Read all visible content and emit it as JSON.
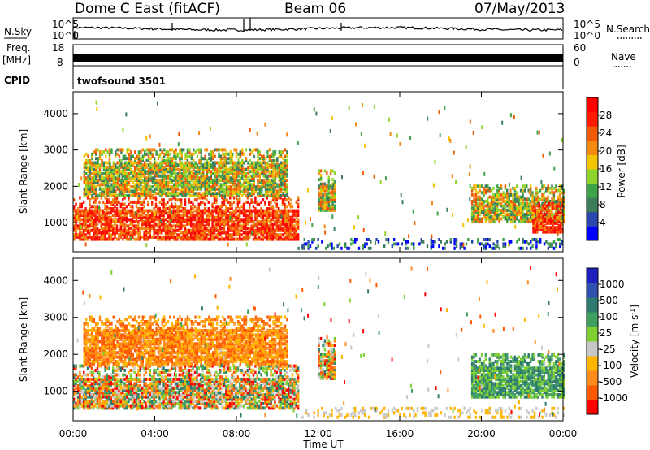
{
  "header": {
    "station": "Dome C East (fitACF)",
    "beam": "Beam 06",
    "date": "07/May/2013"
  },
  "side_labels": {
    "nsky": "N.Sky",
    "nsearch": "N.Search",
    "freq": "Freq.",
    "freq_unit": "[MHz]",
    "nave": "Nave",
    "cpid": "CPID",
    "cpid_value": "twofsound 3501"
  },
  "small_ticks": {
    "noise_top": "10^5",
    "noise_bottom": "10^0",
    "freq_top": "18",
    "freq_bottom": "8",
    "nave_top": "60",
    "nave_bottom": "0"
  },
  "chart_data": [
    {
      "type": "heatmap",
      "name": "power",
      "ylabel": "Slant Range [km]",
      "xlabel": "Time UT",
      "x_ticks": [
        "00:00",
        "04:00",
        "08:00",
        "12:00",
        "16:00",
        "20:00",
        "00:00"
      ],
      "x_hours": [
        0,
        4,
        8,
        12,
        16,
        20,
        24
      ],
      "y_ticks": [
        1000,
        2000,
        3000,
        4000
      ],
      "ylim": [
        200,
        4600
      ],
      "colorbar": {
        "label": "Power [dB]",
        "ticks": [
          "4",
          "8",
          "12",
          "16",
          "20",
          "24",
          "28"
        ],
        "colors": [
          "#0000ff",
          "#2a47ad",
          "#3c7d5c",
          "#3fa34a",
          "#8fd42a",
          "#f3c400",
          "#f48a12",
          "#f05a05",
          "#ff1a00",
          "#ff0000"
        ]
      },
      "regions": [
        {
          "t0": 0.0,
          "t1": 11.0,
          "r0": 500,
          "r1": 1700,
          "level": "high"
        },
        {
          "t0": 0.5,
          "t1": 10.5,
          "r0": 1700,
          "r1": 3000,
          "level": "mixed"
        },
        {
          "t0": 12.0,
          "t1": 12.8,
          "r0": 1300,
          "r1": 2400,
          "level": "mixed"
        },
        {
          "t0": 19.5,
          "t1": 24.0,
          "r0": 1000,
          "r1": 2000,
          "level": "mixed"
        },
        {
          "t0": 22.5,
          "t1": 24.0,
          "r0": 700,
          "r1": 1500,
          "level": "high"
        },
        {
          "t0": 11.0,
          "t1": 24.0,
          "r0": 250,
          "r1": 500,
          "level": "low"
        }
      ]
    },
    {
      "type": "heatmap",
      "name": "velocity",
      "ylabel": "Slant Range [km]",
      "xlabel": "Time UT",
      "x_ticks": [
        "00:00",
        "04:00",
        "08:00",
        "12:00",
        "16:00",
        "20:00",
        "00:00"
      ],
      "x_hours": [
        0,
        4,
        8,
        12,
        16,
        20,
        24
      ],
      "y_ticks": [
        1000,
        2000,
        3000,
        4000
      ],
      "ylim": [
        200,
        4600
      ],
      "colorbar": {
        "label": "Velocity [m s^-1]",
        "ticks": [
          "-1000",
          "-500",
          "-100",
          "-25",
          "25",
          "100",
          "500",
          "1000"
        ],
        "colors": [
          "#ff0000",
          "#ff5a00",
          "#ff8c1a",
          "#ffb400",
          "#c8c8c8",
          "#7fd030",
          "#3fa060",
          "#2f7a70",
          "#3050b0",
          "#2020c0"
        ]
      },
      "regions": [
        {
          "t0": 0.0,
          "t1": 11.0,
          "r0": 500,
          "r1": 1700,
          "level": "mixed"
        },
        {
          "t0": 0.5,
          "t1": 10.5,
          "r0": 1700,
          "r1": 3000,
          "level": "negative"
        },
        {
          "t0": 12.0,
          "t1": 12.8,
          "r0": 1300,
          "r1": 2400,
          "level": "mixed"
        },
        {
          "t0": 19.5,
          "t1": 24.0,
          "r0": 800,
          "r1": 2000,
          "level": "positive"
        },
        {
          "t0": 11.0,
          "t1": 24.0,
          "r0": 250,
          "r1": 500,
          "level": "ground"
        }
      ]
    }
  ]
}
